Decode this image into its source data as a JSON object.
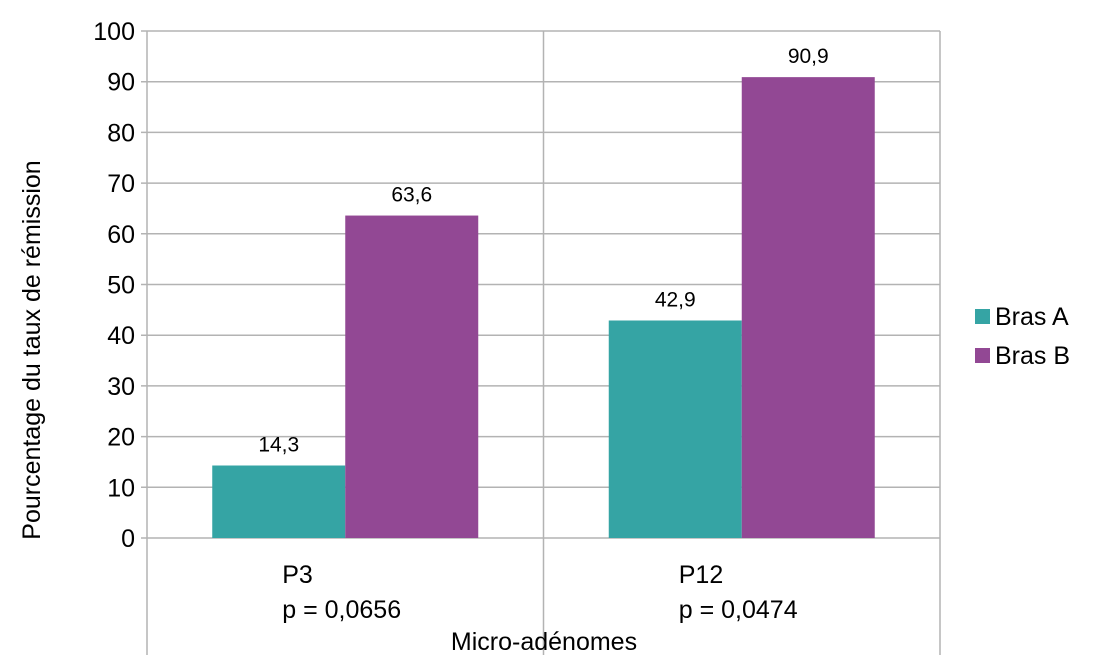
{
  "chart_data": {
    "type": "bar",
    "categories": [
      "P3",
      "P12"
    ],
    "category_sublabels": [
      "p = 0,0656",
      "p = 0,0474"
    ],
    "series": [
      {
        "name": "Bras A",
        "color": "#35a4a4",
        "values": [
          14.3,
          42.9
        ],
        "labels": [
          "14,3",
          "42,9"
        ]
      },
      {
        "name": "Bras B",
        "color": "#924894",
        "values": [
          63.6,
          90.9
        ],
        "labels": [
          "63,6",
          "90,9"
        ]
      }
    ],
    "xlabel": "Micro-adénomes",
    "ylabel": "Pourcentage du taux de rémission",
    "ylim": [
      0,
      100
    ],
    "yticks": [
      0,
      10,
      20,
      30,
      40,
      50,
      60,
      70,
      80,
      90,
      100
    ],
    "grid": true,
    "legend_position": "right"
  }
}
